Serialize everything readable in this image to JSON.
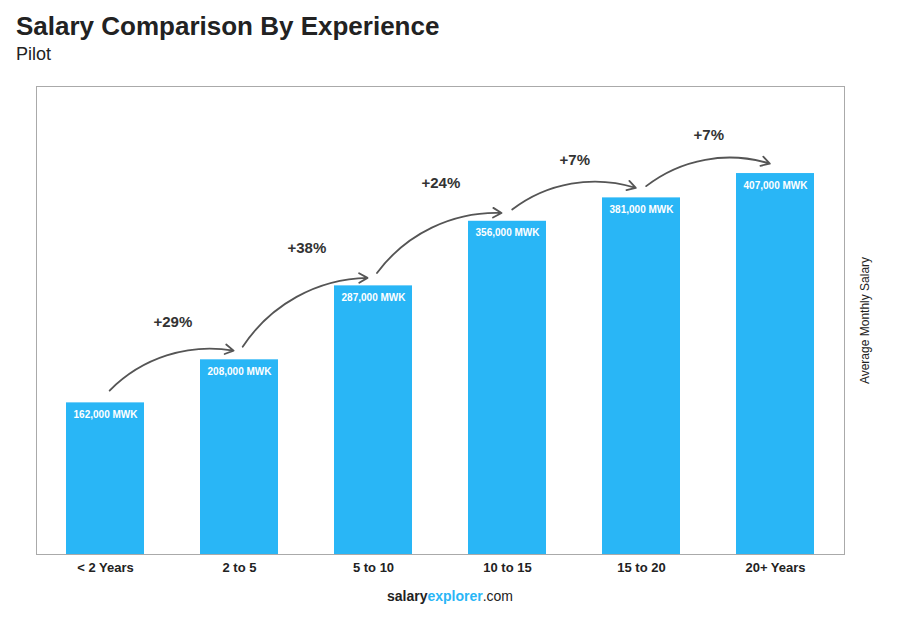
{
  "chart_data": {
    "type": "bar",
    "title": "Salary Comparison By Experience",
    "subtitle": "Pilot",
    "categories": [
      "< 2 Years",
      "2 to 5",
      "5 to 10",
      "10 to 15",
      "15 to 20",
      "20+ Years"
    ],
    "values": [
      162000,
      208000,
      287000,
      356000,
      381000,
      407000
    ],
    "value_labels": [
      "162,000 MWK",
      "208,000 MWK",
      "287,000 MWK",
      "356,000 MWK",
      "381,000 MWK",
      "407,000 MWK"
    ],
    "data_labels": true,
    "color": "#29B6F6",
    "ylabel": "Average Monthly Salary",
    "ylim": [
      0,
      500000
    ],
    "tick_labels": "x",
    "grid": false,
    "annotations": [
      "+29%",
      "+38%",
      "+24%",
      "+7%",
      "+7%"
    ],
    "caption": [
      "salary",
      "explorer",
      ".com"
    ]
  }
}
